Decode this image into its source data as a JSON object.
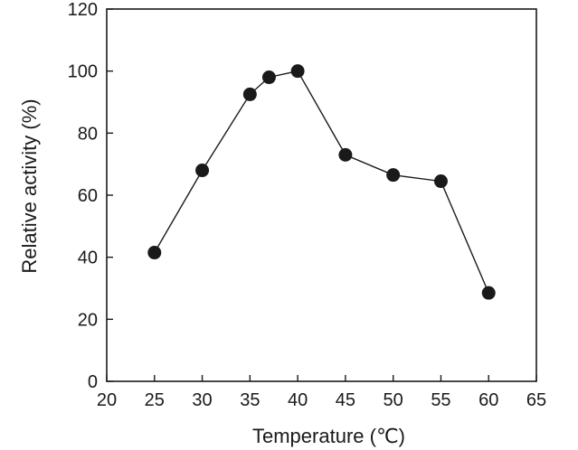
{
  "chart_data": {
    "type": "line",
    "xlabel": "Temperature (℃)",
    "ylabel": "Relative activity (%)",
    "xlim": [
      20,
      65
    ],
    "ylim": [
      0,
      120
    ],
    "xticks": [
      20,
      25,
      30,
      35,
      40,
      45,
      50,
      55,
      60,
      65
    ],
    "yticks": [
      0,
      20,
      40,
      60,
      80,
      100,
      120
    ],
    "grid": false,
    "legend": "none",
    "colors": {
      "line": "#1a1a1a",
      "marker": "#1a1a1a",
      "axis": "#1a1a1a"
    },
    "series": [
      {
        "x": [
          25,
          30,
          35,
          37,
          40,
          45,
          50,
          55,
          60
        ],
        "y": [
          41.5,
          68,
          92.5,
          98,
          100,
          73,
          66.5,
          64.5,
          28.5
        ]
      }
    ]
  }
}
